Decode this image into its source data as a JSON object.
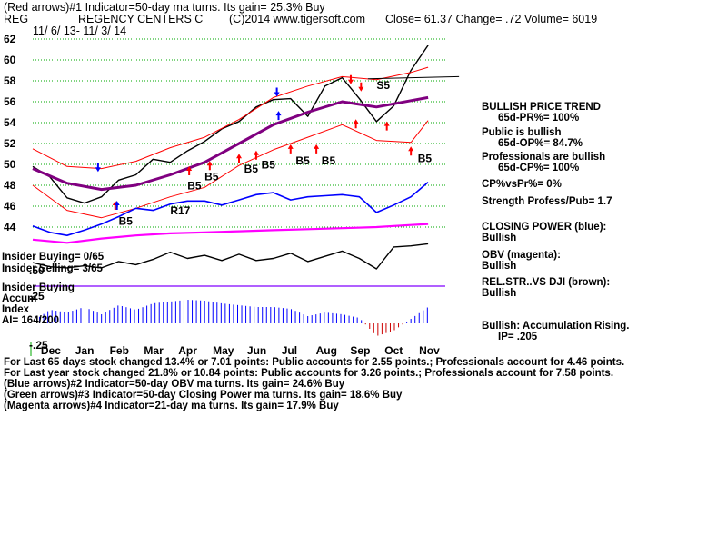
{
  "header": {
    "line1": "(Red arrows)#1 Indicator=50-day ma turns. Its gain= 25.3% Buy",
    "symbol": "REG",
    "company": "REGENCY CENTERS C",
    "copyright": "(C)2014 www.tigersoft.com",
    "quote": "Close= 61.37  Change= .72 Volume= 6019",
    "daterange": "11/ 6/ 13- 11/ 3/ 14"
  },
  "chart_data": {
    "type": "line",
    "title": "REGENCY CENTERS C",
    "ylim": [
      43,
      63
    ],
    "price_ticks": [
      "62",
      "60",
      "58",
      "56",
      "54",
      "52",
      "50",
      "48",
      "46",
      "44"
    ],
    "months": [
      "Dec",
      "Jan",
      "Feb",
      "Mar",
      "Apr",
      "May",
      "Jun",
      "Jul",
      "Aug",
      "Sep",
      "Oct",
      "Nov"
    ],
    "months_idx": [
      1,
      3,
      5,
      7,
      9,
      11,
      13,
      15,
      17,
      19,
      21,
      23
    ],
    "series": [
      {
        "name": "Price",
        "color": "#000000",
        "x": [
          0,
          1,
          2,
          3,
          4,
          5,
          6,
          7,
          8,
          9,
          10,
          11,
          12,
          13,
          14,
          15,
          16,
          17,
          18,
          19,
          20,
          21,
          22,
          23
        ],
        "values": [
          49.8,
          48.8,
          46.8,
          46.3,
          46.9,
          48.5,
          49.0,
          50.5,
          50.2,
          51.3,
          52.2,
          53.4,
          54.1,
          55.5,
          56.2,
          56.3,
          54.6,
          57.5,
          58.3,
          56.3,
          54.1,
          55.6,
          59.0,
          61.4
        ]
      },
      {
        "name": "50-day MA",
        "color": "#800080",
        "x": [
          0,
          2,
          4,
          6,
          8,
          10,
          12,
          14,
          16,
          18,
          20,
          22,
          23
        ],
        "values": [
          49.6,
          48.2,
          47.6,
          48.0,
          49.0,
          50.2,
          52.0,
          53.8,
          55.0,
          56.0,
          55.5,
          56.1,
          56.4
        ]
      },
      {
        "name": "Upper band",
        "color": "#ff0000",
        "x": [
          0,
          2,
          4,
          6,
          8,
          10,
          12,
          14,
          16,
          18,
          20,
          22,
          23
        ],
        "values": [
          51.5,
          49.8,
          49.6,
          50.3,
          51.6,
          52.6,
          54.3,
          56.4,
          57.5,
          58.4,
          58.1,
          58.8,
          59.3
        ]
      },
      {
        "name": "Lower band",
        "color": "#ff0000",
        "x": [
          0,
          2,
          4,
          6,
          8,
          10,
          12,
          14,
          16,
          18,
          20,
          22,
          23
        ],
        "values": [
          48.0,
          45.6,
          44.9,
          45.8,
          46.9,
          47.8,
          49.9,
          51.4,
          52.6,
          53.8,
          52.3,
          52.1,
          54.2
        ]
      },
      {
        "name": "Closing Power",
        "color": "#0000ff",
        "x": [
          0,
          1,
          2,
          3,
          4,
          5,
          6,
          7,
          8,
          9,
          10,
          11,
          12,
          13,
          14,
          15,
          16,
          17,
          18,
          19,
          20,
          21,
          22,
          23
        ],
        "values": [
          44.1,
          43.5,
          43.2,
          43.7,
          44.3,
          45.0,
          45.8,
          45.6,
          46.2,
          46.5,
          46.5,
          46.1,
          46.6,
          47.1,
          47.3,
          46.6,
          46.9,
          47.0,
          47.1,
          46.9,
          45.4,
          46.1,
          46.9,
          48.3
        ]
      },
      {
        "name": "OBV",
        "color": "#ff00ff",
        "x": [
          0,
          2,
          4,
          6,
          8,
          10,
          12,
          14,
          16,
          18,
          20,
          22,
          23
        ],
        "values": [
          42.8,
          42.5,
          42.9,
          43.2,
          43.4,
          43.5,
          43.6,
          43.7,
          43.8,
          43.9,
          44.0,
          44.2,
          44.3
        ]
      },
      {
        "name": "Relative Strength vs DJI",
        "color": "#000000",
        "x": [
          0,
          1,
          2,
          3,
          4,
          5,
          6,
          7,
          8,
          9,
          10,
          11,
          12,
          13,
          14,
          15,
          16,
          17,
          18,
          19,
          20,
          21,
          22,
          23
        ],
        "values": [
          40.6,
          40.2,
          40.1,
          40.3,
          40.1,
          40.7,
          40.4,
          40.9,
          41.6,
          41.0,
          41.3,
          40.8,
          41.4,
          40.8,
          41.0,
          41.5,
          40.7,
          41.2,
          41.7,
          41.0,
          40.0,
          42.1,
          42.2,
          42.4
        ]
      },
      {
        "name": "Accumulation Index",
        "color": "#0000ff",
        "x": [
          0,
          1,
          2,
          3,
          4,
          5,
          6,
          7,
          8,
          9,
          10,
          11,
          12,
          13,
          14,
          15,
          16,
          17,
          18,
          19,
          20,
          21,
          22,
          23
        ],
        "values": [
          0.02,
          0.15,
          0.12,
          0.18,
          0.1,
          0.2,
          0.15,
          0.22,
          0.24,
          0.26,
          0.25,
          0.22,
          0.2,
          0.18,
          0.18,
          0.16,
          0.08,
          0.12,
          0.1,
          0.06,
          -0.14,
          -0.08,
          0.05,
          0.18
        ]
      }
    ],
    "lower_ticks": [
      ".50",
      ".25",
      "-.25"
    ],
    "markers": [
      {
        "text": "S5",
        "x": 20,
        "y": 57.2
      },
      {
        "text": "B5",
        "x": 5,
        "y": 44.2
      },
      {
        "text": "R17",
        "x": 8,
        "y": 45.2
      },
      {
        "text": "B5",
        "x": 9,
        "y": 47.6
      },
      {
        "text": "B5",
        "x": 10,
        "y": 48.5
      },
      {
        "text": "B5",
        "x": 12.3,
        "y": 49.2
      },
      {
        "text": "B5",
        "x": 13.3,
        "y": 49.6
      },
      {
        "text": "B5",
        "x": 15.3,
        "y": 50.0
      },
      {
        "text": "B5",
        "x": 16.8,
        "y": 50.0
      },
      {
        "text": "B5",
        "x": 22.4,
        "y": 50.2
      }
    ],
    "arrows_up": [
      {
        "x": 4.8,
        "y": 46.0,
        "color": "#ff0000"
      },
      {
        "x": 4.9,
        "y": 46.0,
        "color": "#0000ff"
      },
      {
        "x": 9.1,
        "y": 49.3,
        "color": "#ff0000"
      },
      {
        "x": 10.3,
        "y": 49.8,
        "color": "#ff0000"
      },
      {
        "x": 12.0,
        "y": 50.5,
        "color": "#ff0000"
      },
      {
        "x": 13.0,
        "y": 50.8,
        "color": "#ff0000"
      },
      {
        "x": 15.0,
        "y": 51.4,
        "color": "#ff0000"
      },
      {
        "x": 16.5,
        "y": 51.4,
        "color": "#ff0000"
      },
      {
        "x": 14.3,
        "y": 54.6,
        "color": "#0000ff"
      },
      {
        "x": 18.8,
        "y": 53.8,
        "color": "#ff0000"
      },
      {
        "x": 20.6,
        "y": 53.6,
        "color": "#ff0000"
      },
      {
        "x": 22.0,
        "y": 51.2,
        "color": "#ff0000"
      }
    ],
    "arrows_down": [
      {
        "x": 3.8,
        "y": 49.8,
        "color": "#0000ff"
      },
      {
        "x": 14.2,
        "y": 57.0,
        "color": "#0000ff"
      },
      {
        "x": 18.5,
        "y": 58.2,
        "color": "#ff0000"
      },
      {
        "x": 19.1,
        "y": 57.5,
        "color": "#ff0000"
      }
    ],
    "resistance_line": {
      "x1": 19.5,
      "y": 58.2,
      "x2": 24.8,
      "y2": 58.4
    }
  },
  "insider": {
    "buying": "Insider Buying= 0/65",
    "selling": "Insider Selling= 3/65",
    "buying_label": "Insider Buying",
    "accum": "Accum",
    "index": "Index",
    "ai": "AI= 164/200"
  },
  "right_panel": {
    "trend": "BULLISH PRICE TREND",
    "pr": "65d-PR%= 100%",
    "public": "Public is bullish",
    "op": "65d-OP%= 84.7%",
    "pros": "Professionals are bullish",
    "cp": "65d-CP%= 100%",
    "cpvspr": "CP%vsPr%=  0%",
    "strength": "Strength Profess/Pub= 1.7",
    "closing_power": "CLOSING POWER (blue):",
    "cp_state": "Bullish",
    "obv": "OBV (magenta):",
    "obv_state": "Bullish",
    "relstr": "REL.STR..VS DJI (brown):",
    "relstr_state": "Bullish",
    "accum_text": "Bullish: Accumulation Rising.",
    "ip": "IP=  .205"
  },
  "notes": [
    "For Last 65 days stock changed  13.4% or  7.01 points:  Public accounts for  2.55 points.;  Professionals account for  4.46 points.",
    "For Last year stock changed  21.8% or  10.84 points:  Public accounts for  3.26 points.;  Professionals account for  7.58 points.",
    "(Blue arrows)#2 Indicator=50-day OBV ma turns. Its gain= 24.6% Buy",
    "(Green arrows)#3 Indicator=50-day Closing Power ma turns. Its gain= 18.6% Buy",
    "(Magenta arrows)#4 Indicator=21-day ma turns. Its gain= 17.9% Buy"
  ]
}
